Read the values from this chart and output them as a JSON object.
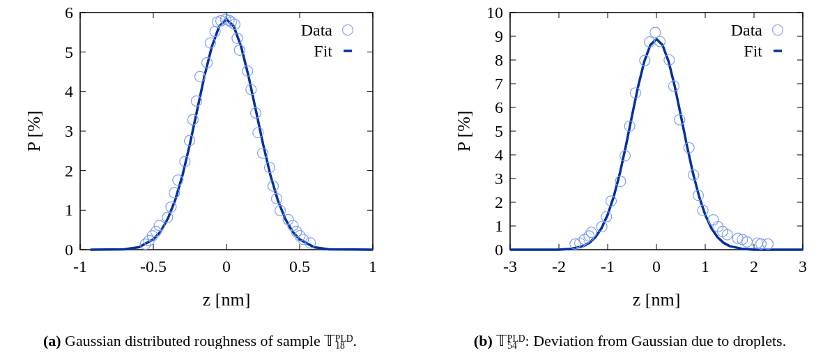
{
  "chart_data": [
    {
      "type": "scatter",
      "xlabel": "z [nm]",
      "ylabel": "P [%]",
      "xlim": [
        -1,
        1
      ],
      "xticks": [
        -1,
        -0.5,
        0,
        0.5,
        1
      ],
      "ylim": [
        0,
        6
      ],
      "yticks": [
        0,
        1,
        2,
        3,
        4,
        5,
        6
      ],
      "grid": false,
      "legend": "top right",
      "annotations": [
        "(a) Gaussian distributed roughness of sample 𝕋$_{18}$$^{PLD}$."
      ],
      "series": [
        {
          "name": "Data",
          "type": "scatter",
          "marker": "circle",
          "color": "#7f9ff5",
          "x": [
            -0.554,
            -0.53,
            -0.506,
            -0.482,
            -0.459,
            -0.403,
            -0.379,
            -0.356,
            -0.332,
            -0.284,
            -0.252,
            -0.229,
            -0.205,
            -0.181,
            -0.133,
            -0.11,
            -0.078,
            -0.062,
            -0.038,
            -0.006,
            0.017,
            0.033,
            0.057,
            0.073,
            0.089,
            0.144,
            0.168,
            0.2,
            0.216,
            0.248,
            0.295,
            0.319,
            0.343,
            0.367,
            0.422,
            0.454,
            0.478,
            0.502,
            0.525,
            0.573
          ],
          "values": [
            0.14,
            0.23,
            0.35,
            0.46,
            0.61,
            0.82,
            1.08,
            1.44,
            1.76,
            2.23,
            2.76,
            3.29,
            3.76,
            4.38,
            4.73,
            5.23,
            5.52,
            5.76,
            5.79,
            5.83,
            5.8,
            5.76,
            5.7,
            5.35,
            5.05,
            4.52,
            4.05,
            3.46,
            2.96,
            2.44,
            2.08,
            1.61,
            1.29,
            0.99,
            0.76,
            0.61,
            0.46,
            0.35,
            0.26,
            0.17
          ]
        },
        {
          "name": "Fit",
          "type": "line",
          "marker": "none",
          "color": "#00309a",
          "line_style": "solid",
          "x": [
            -0.93,
            -0.7,
            -0.6,
            -0.5,
            -0.45,
            -0.4,
            -0.35,
            -0.3,
            -0.25,
            -0.2,
            -0.15,
            -0.1,
            -0.05,
            0,
            0.05,
            0.1,
            0.15,
            0.2,
            0.25,
            0.3,
            0.35,
            0.4,
            0.45,
            0.5,
            0.6,
            0.7,
            1
          ],
          "values": [
            0,
            0.01,
            0.06,
            0.26,
            0.46,
            0.79,
            1.26,
            1.89,
            2.67,
            3.54,
            4.4,
            5.14,
            5.65,
            5.83,
            5.65,
            5.14,
            4.4,
            3.54,
            2.67,
            1.89,
            1.26,
            0.79,
            0.46,
            0.26,
            0.06,
            0.01,
            0
          ]
        }
      ]
    },
    {
      "type": "scatter",
      "xlabel": "z [nm]",
      "ylabel": "P [%]",
      "xlim": [
        -3,
        3
      ],
      "xticks": [
        -3,
        -2,
        -1,
        0,
        1,
        2,
        3
      ],
      "ylim": [
        0,
        10
      ],
      "yticks": [
        0,
        1,
        2,
        3,
        4,
        5,
        6,
        7,
        8,
        9,
        10
      ],
      "grid": false,
      "legend": "top right",
      "annotations": [
        "(b) 𝕋$_{54}$$^{PLD}$: Deviation from Gaussian due to droplets."
      ],
      "series": [
        {
          "name": "Data",
          "type": "scatter",
          "marker": "circle",
          "color": "#7f9ff5",
          "x": [
            -1.667,
            -1.571,
            -1.476,
            -1.381,
            -1.333,
            -1.119,
            -1.024,
            -0.929,
            -0.738,
            -0.643,
            -0.548,
            -0.429,
            -0.238,
            -0.143,
            -0.024,
            0.071,
            0.262,
            0.357,
            0.476,
            0.667,
            0.762,
            0.857,
            0.952,
            1.167,
            1.262,
            1.357,
            1.452,
            1.667,
            1.762,
            1.857,
            2.071,
            2.143,
            2.286
          ],
          "values": [
            0.24,
            0.28,
            0.43,
            0.58,
            0.73,
            0.97,
            1.39,
            2.05,
            2.88,
            3.96,
            5.21,
            6.61,
            7.98,
            8.76,
            9.16,
            8.78,
            8.0,
            6.9,
            5.48,
            4.3,
            3.15,
            2.29,
            1.66,
            1.26,
            0.97,
            0.77,
            0.63,
            0.48,
            0.43,
            0.33,
            0.28,
            0.24,
            0.24
          ]
        },
        {
          "name": "Fit",
          "type": "line",
          "marker": "none",
          "color": "#00309a",
          "line_style": "solid",
          "x": [
            -3,
            -2,
            -1.75,
            -1.5,
            -1.375,
            -1.25,
            -1.125,
            -1,
            -0.875,
            -0.75,
            -0.625,
            -0.5,
            -0.375,
            -0.25,
            -0.125,
            0,
            0.125,
            0.25,
            0.375,
            0.5,
            0.625,
            0.75,
            0.875,
            1,
            1.125,
            1.25,
            1.375,
            1.5,
            1.75,
            2,
            3
          ],
          "values": [
            0,
            0,
            0.04,
            0.15,
            0.29,
            0.53,
            0.91,
            1.47,
            2.24,
            3.22,
            4.39,
            5.66,
            6.89,
            7.93,
            8.63,
            8.88,
            8.63,
            7.93,
            6.89,
            5.66,
            4.39,
            3.22,
            2.24,
            1.47,
            0.91,
            0.53,
            0.29,
            0.15,
            0.04,
            0,
            0
          ]
        }
      ]
    }
  ]
}
